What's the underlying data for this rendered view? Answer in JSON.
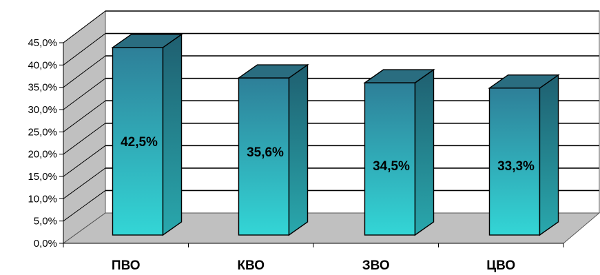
{
  "chart_data": {
    "type": "bar",
    "three_d": true,
    "categories": [
      "ПВО",
      "КВО",
      "ЗВО",
      "ЦВО"
    ],
    "values": [
      42.5,
      35.6,
      34.5,
      33.3
    ],
    "data_labels": [
      "42,5%",
      "35,6%",
      "34,5%",
      "33,3%"
    ],
    "ylim": [
      0,
      45
    ],
    "yticks": [
      0,
      5,
      10,
      15,
      20,
      25,
      30,
      35,
      40,
      45
    ],
    "ytick_labels": [
      "0,0%",
      "5,0%",
      "10,0%",
      "15,0%",
      "20,0%",
      "25,0%",
      "30,0%",
      "35,0%",
      "40,0%",
      "45,0%"
    ],
    "grid": true,
    "legend": "none",
    "colors": {
      "bar_top": "#2e7f98",
      "bar_bottom": "#33d6d6",
      "bar_side": "#1f6e80",
      "bar_cap": "#2a6d80",
      "floor": "#c0c0c0",
      "wall": "#c0c0c0",
      "gridline": "#000000"
    }
  }
}
